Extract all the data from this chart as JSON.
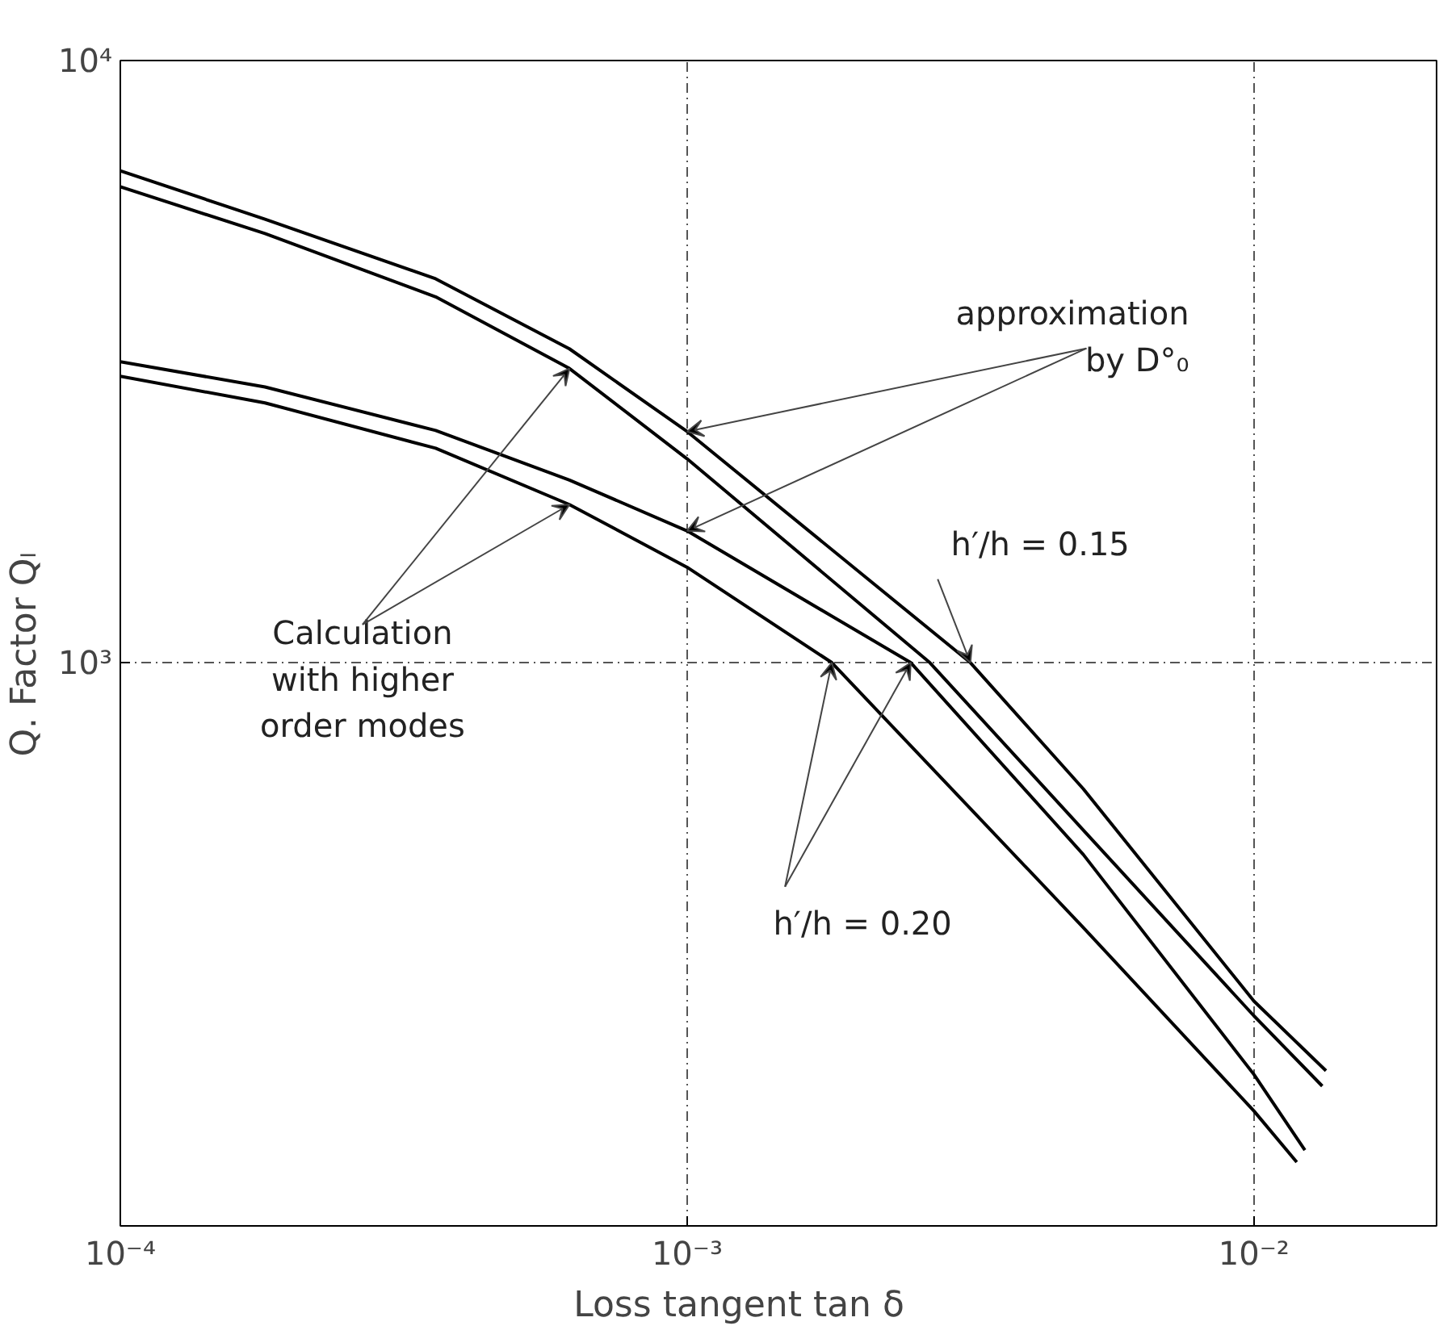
{
  "chart_data": {
    "type": "line",
    "xlabel": "Loss tangent        tan δ",
    "ylabel": "Q. Factor   Qₗ",
    "log": "xy",
    "grid": true,
    "line_style": "solid",
    "marker": "none",
    "xlim": [
      0.0001,
      0.021
    ],
    "ylim": [
      116,
      10000
    ],
    "xticks": [
      {
        "value": 0.0001,
        "label": "10⁻⁴"
      },
      {
        "value": 0.001,
        "label": "10⁻³"
      },
      {
        "value": 0.01,
        "label": "10⁻²"
      }
    ],
    "yticks": [
      {
        "value": 1000,
        "label": "10³"
      },
      {
        "value": 10000,
        "label": "10⁴"
      }
    ],
    "series": [
      {
        "color": "#000000",
        "x": [
          0.0001,
          0.00018,
          0.00036,
          0.00062,
          0.001,
          0.00316,
          0.005,
          0.01,
          0.0134
        ],
        "values": [
          6560,
          5450,
          4340,
          3320,
          2420,
          1000,
          617,
          274,
          210
        ]
      },
      {
        "color": "#000000",
        "x": [
          0.0001,
          0.00018,
          0.00036,
          0.00062,
          0.001,
          0.00268,
          0.005,
          0.01,
          0.0132
        ],
        "values": [
          6170,
          5160,
          4050,
          3080,
          2180,
          1000,
          527,
          259,
          198
        ]
      },
      {
        "color": "#000000",
        "x": [
          0.0001,
          0.00018,
          0.00036,
          0.00062,
          0.001,
          0.00248,
          0.005,
          0.01,
          0.0123
        ],
        "values": [
          3160,
          2870,
          2430,
          2010,
          1655,
          1000,
          480,
          207,
          155
        ]
      },
      {
        "color": "#000000",
        "x": [
          0.0001,
          0.00018,
          0.00036,
          0.00062,
          0.001,
          0.0018,
          0.005,
          0.01,
          0.0119
        ],
        "values": [
          2990,
          2700,
          2270,
          1830,
          1440,
          1000,
          363,
          180,
          148
        ]
      }
    ],
    "annotations": [
      {
        "text": "approximation\nby D°₀",
        "x": 0.001,
        "y": 2420
      },
      {
        "text": "Calculation\nwith higher\norder modes",
        "x": 0.00062,
        "y": 3080
      },
      {
        "text": "h′/h = 0.15",
        "x": 0.00316,
        "y": 1000
      },
      {
        "text": "h′/h = 0.20",
        "x": 0.00248,
        "y": 1000
      }
    ]
  }
}
